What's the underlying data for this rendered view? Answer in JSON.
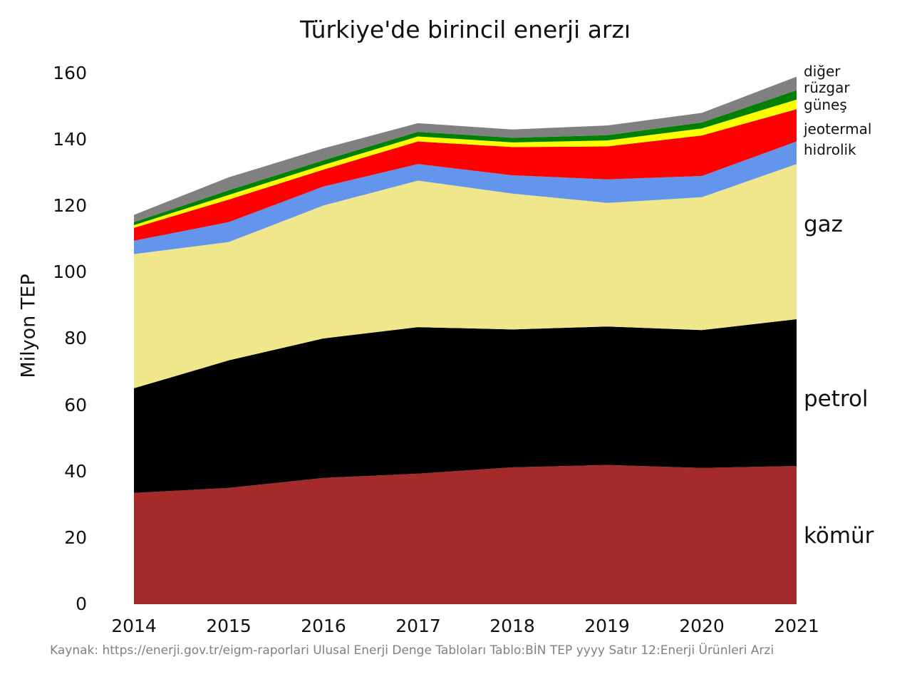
{
  "title": "Türkiye'de birincil enerji arzı",
  "caption": "Kaynak: https://enerji.gov.tr/eigm-raporlari Ulusal Enerji Denge Tabloları Tablo:BİN TEP yyyy Satır 12:Enerji̇ Ürünleri̇ Arzi",
  "chart_data": {
    "type": "area",
    "stacked": true,
    "title": "Türkiye'de birincil enerji arzı",
    "xlabel": "",
    "ylabel": "Milyon TEP",
    "ylim": [
      0,
      160
    ],
    "grid": false,
    "legend_position": "right-annotations",
    "categories": [
      "2014",
      "2015",
      "2016",
      "2017",
      "2018",
      "2019",
      "2020",
      "2021"
    ],
    "y_ticks": [
      "0",
      "20",
      "40",
      "60",
      "80",
      "100",
      "120",
      "140",
      "160"
    ],
    "series": [
      {
        "key": "komur",
        "name": "kömür",
        "color": "#a52a2a",
        "values": [
          33.5,
          35.0,
          38.0,
          39.3,
          41.2,
          41.9,
          41.0,
          41.6
        ]
      },
      {
        "key": "petrol",
        "name": "petrol",
        "color": "#000000",
        "values": [
          31.5,
          38.4,
          42.0,
          44.1,
          41.5,
          41.7,
          41.5,
          44.2
        ]
      },
      {
        "key": "gaz",
        "name": "gaz",
        "color": "#f0e68c",
        "values": [
          40.4,
          35.6,
          40.0,
          44.1,
          40.9,
          37.2,
          40.0,
          46.7
        ]
      },
      {
        "key": "hidrolik",
        "name": "hidrolik",
        "color": "#6495ed",
        "values": [
          4.0,
          6.0,
          5.7,
          5.0,
          5.5,
          7.1,
          6.4,
          6.8
        ]
      },
      {
        "key": "jeotermal",
        "name": "jeotermal",
        "color": "#ff0000",
        "values": [
          3.9,
          6.8,
          5.1,
          6.8,
          8.5,
          9.9,
          12.2,
          9.7
        ]
      },
      {
        "key": "gunes",
        "name": "güneş",
        "color": "#ffff00",
        "values": [
          0.8,
          1.4,
          1.4,
          1.5,
          1.4,
          1.8,
          2.1,
          2.9
        ]
      },
      {
        "key": "ruzgar",
        "name": "rüzgar",
        "color": "#008000",
        "values": [
          0.9,
          1.4,
          1.4,
          1.4,
          1.4,
          1.6,
          1.8,
          2.8
        ]
      },
      {
        "key": "diger",
        "name": "diğer",
        "color": "#808080",
        "values": [
          2.2,
          3.9,
          3.6,
          2.6,
          2.5,
          2.9,
          2.9,
          4.1
        ]
      }
    ],
    "totals": [
      117.2,
      128.5,
      137.2,
      144.8,
      142.9,
      144.1,
      147.9,
      158.8
    ]
  }
}
